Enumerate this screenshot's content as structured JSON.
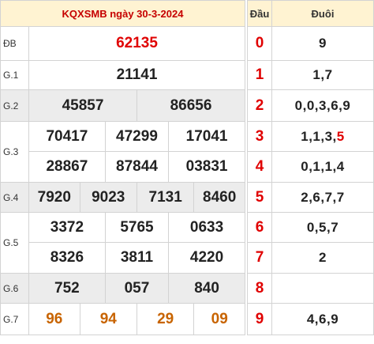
{
  "header": {
    "title": "KQXSMB ngày 30-3-2024",
    "dau_label": "Đầu",
    "duoi_label": "Đuôi"
  },
  "prizes": {
    "db": {
      "label": "ĐB",
      "values": [
        "62135"
      ]
    },
    "g1": {
      "label": "G.1",
      "values": [
        "21141"
      ]
    },
    "g2": {
      "label": "G.2",
      "values": [
        "45857",
        "86656"
      ]
    },
    "g3": {
      "label": "G.3",
      "values": [
        "70417",
        "47299",
        "17041",
        "28867",
        "87844",
        "03831"
      ]
    },
    "g4": {
      "label": "G.4",
      "values": [
        "7920",
        "9023",
        "7131",
        "8460"
      ]
    },
    "g5": {
      "label": "G.5",
      "values": [
        "3372",
        "5765",
        "0633",
        "8326",
        "3811",
        "4220"
      ]
    },
    "g6": {
      "label": "G.6",
      "values": [
        "752",
        "057",
        "840"
      ]
    },
    "g7": {
      "label": "G.7",
      "values": [
        "96",
        "94",
        "29",
        "09"
      ]
    }
  },
  "loto": [
    {
      "head": "0",
      "tail": "9"
    },
    {
      "head": "1",
      "tail": "1,7"
    },
    {
      "head": "2",
      "tail": "0,0,3,6,9"
    },
    {
      "head": "3",
      "tail_plain": "1,1,3,",
      "tail_highlight": "5"
    },
    {
      "head": "4",
      "tail": "0,1,1,4"
    },
    {
      "head": "5",
      "tail": "2,6,7,7"
    },
    {
      "head": "6",
      "tail": "0,5,7"
    },
    {
      "head": "7",
      "tail": "2"
    },
    {
      "head": "8",
      "tail": ""
    },
    {
      "head": "9",
      "tail": "4,6,9"
    }
  ],
  "colors": {
    "header_bg": "#fff3d2",
    "special_red": "#e00000",
    "g7_orange": "#c86400",
    "shade": "#ececec"
  }
}
